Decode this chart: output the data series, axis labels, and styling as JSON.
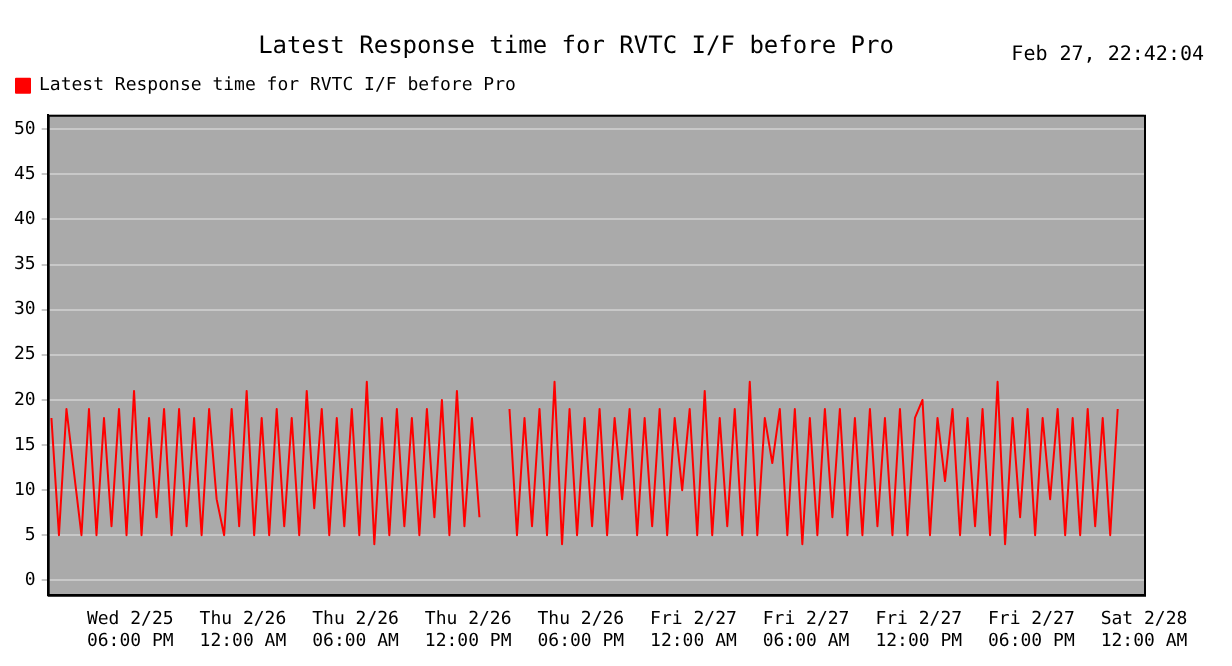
{
  "chart_data": {
    "type": "line",
    "title": "Latest Response time for RVTC I/F before Pro",
    "annotations": [
      "Feb 27, 22:42:04"
    ],
    "x": [
      "--02-25T13:48",
      "--02-25T14:12",
      "--02-25T14:36",
      "--02-25T15:00",
      "--02-25T15:24",
      "--02-25T15:48",
      "--02-25T16:12",
      "--02-25T16:36",
      "--02-25T17:00",
      "--02-25T17:24",
      "--02-25T17:48",
      "--02-25T18:12",
      "--02-25T18:36",
      "--02-25T19:00",
      "--02-25T19:24",
      "--02-25T19:48",
      "--02-25T20:12",
      "--02-25T20:36",
      "--02-25T21:00",
      "--02-25T21:24",
      "--02-25T21:48",
      "--02-25T22:12",
      "--02-25T22:36",
      "--02-25T23:00",
      "--02-25T23:24",
      "--02-25T23:48",
      "--02-26T00:12",
      "--02-26T00:36",
      "--02-26T01:00",
      "--02-26T01:24",
      "--02-26T01:48",
      "--02-26T02:12",
      "--02-26T02:36",
      "--02-26T03:00",
      "--02-26T03:24",
      "--02-26T03:48",
      "--02-26T04:12",
      "--02-26T04:36",
      "--02-26T05:00",
      "--02-26T05:24",
      "--02-26T05:48",
      "--02-26T06:12",
      "--02-26T06:36",
      "--02-26T07:00",
      "--02-26T07:24",
      "--02-26T07:48",
      "--02-26T08:12",
      "--02-26T08:36",
      "--02-26T09:00",
      "--02-26T09:24",
      "--02-26T09:48",
      "--02-26T10:12",
      "--02-26T10:36",
      "--02-26T11:00",
      "--02-26T11:24",
      "--02-26T11:48",
      "--02-26T12:12",
      "--02-26T12:36",
      "--02-26T13:00",
      "--02-26T13:24",
      "--02-26T13:48",
      "--02-26T14:12",
      "--02-26T14:36",
      "--02-26T15:00",
      "--02-26T15:24",
      "--02-26T15:48",
      "--02-26T16:12",
      "--02-26T16:36",
      "--02-26T17:00",
      "--02-26T17:24",
      "--02-26T17:48",
      "--02-26T18:12",
      "--02-26T18:36",
      "--02-26T19:00",
      "--02-26T19:24",
      "--02-26T19:48",
      "--02-26T20:12",
      "--02-26T20:36",
      "--02-26T21:00",
      "--02-26T21:24",
      "--02-26T21:48",
      "--02-26T22:12",
      "--02-26T22:36",
      "--02-26T23:00",
      "--02-26T23:24",
      "--02-26T23:48",
      "--02-27T00:12",
      "--02-27T00:36",
      "--02-27T01:00",
      "--02-27T01:24",
      "--02-27T01:48",
      "--02-27T02:12",
      "--02-27T02:36",
      "--02-27T03:00",
      "--02-27T03:24",
      "--02-27T03:48",
      "--02-27T04:12",
      "--02-27T04:36",
      "--02-27T05:00",
      "--02-27T05:24",
      "--02-27T05:48",
      "--02-27T06:12",
      "--02-27T06:36",
      "--02-27T07:00",
      "--02-27T07:24",
      "--02-27T07:48",
      "--02-27T08:12",
      "--02-27T08:36",
      "--02-27T09:00",
      "--02-27T09:24",
      "--02-27T09:48",
      "--02-27T10:12",
      "--02-27T10:36",
      "--02-27T11:00",
      "--02-27T11:24",
      "--02-27T11:48",
      "--02-27T12:12",
      "--02-27T12:36",
      "--02-27T13:00",
      "--02-27T13:24",
      "--02-27T13:48",
      "--02-27T14:12",
      "--02-27T14:36",
      "--02-27T15:00",
      "--02-27T15:24",
      "--02-27T15:48",
      "--02-27T16:12",
      "--02-27T16:36",
      "--02-27T17:00",
      "--02-27T17:24",
      "--02-27T17:48",
      "--02-27T18:12",
      "--02-27T18:36",
      "--02-27T19:00",
      "--02-27T19:24",
      "--02-27T19:48",
      "--02-27T20:12",
      "--02-27T20:36",
      "--02-27T21:00",
      "--02-27T21:24",
      "--02-27T21:48",
      "--02-27T22:12",
      "--02-27T22:36"
    ],
    "series": [
      {
        "name": "Latest Response time for RVTC I/F before Pro",
        "color": "#ff0000",
        "values": [
          18,
          5,
          19,
          12,
          5,
          19,
          5,
          18,
          6,
          19,
          5,
          21,
          5,
          18,
          7,
          19,
          5,
          19,
          6,
          18,
          5,
          19,
          9,
          5,
          19,
          6,
          21,
          5,
          18,
          5,
          19,
          6,
          18,
          5,
          21,
          8,
          19,
          5,
          18,
          6,
          19,
          5,
          22,
          4,
          18,
          5,
          19,
          6,
          18,
          5,
          19,
          7,
          20,
          5,
          21,
          6,
          18,
          7,
          null,
          null,
          null,
          19,
          5,
          18,
          6,
          19,
          5,
          22,
          4,
          19,
          5,
          18,
          6,
          19,
          5,
          18,
          9,
          19,
          5,
          18,
          6,
          19,
          5,
          18,
          10,
          19,
          5,
          21,
          5,
          18,
          6,
          19,
          5,
          22,
          5,
          18,
          13,
          19,
          5,
          19,
          4,
          18,
          5,
          19,
          7,
          19,
          5,
          18,
          5,
          19,
          6,
          18,
          5,
          19,
          5,
          18,
          20,
          5,
          18,
          11,
          19,
          5,
          18,
          6,
          19,
          5,
          22,
          4,
          18,
          7,
          19,
          5,
          18,
          9,
          19,
          5,
          18,
          5,
          19,
          6,
          18,
          5,
          19
        ]
      }
    ],
    "xlim": [
      "--02-25T13:36",
      "--02-28T00:00"
    ],
    "xticks": [
      {
        "value": "--02-25T18:00",
        "label": "Wed 2/25 06:00 PM"
      },
      {
        "value": "--02-26T00:00",
        "label": "Thu 2/26 12:00 AM"
      },
      {
        "value": "--02-26T06:00",
        "label": "Thu 2/26 06:00 AM"
      },
      {
        "value": "--02-26T12:00",
        "label": "Thu 2/26 12:00 PM"
      },
      {
        "value": "--02-26T18:00",
        "label": "Thu 2/26 06:00 PM"
      },
      {
        "value": "--02-27T00:00",
        "label": "Fri 2/27 12:00 AM"
      },
      {
        "value": "--02-27T06:00",
        "label": "Fri 2/27 06:00 AM"
      },
      {
        "value": "--02-27T12:00",
        "label": "Fri 2/27 12:00 PM"
      },
      {
        "value": "--02-27T18:00",
        "label": "Fri 2/27 06:00 PM"
      },
      {
        "value": "--02-28T00:00",
        "label": "Sat 2/28 12:00 AM"
      }
    ],
    "ylim": [
      -1.6,
      51.6
    ],
    "yticks": [
      0,
      5,
      10,
      15,
      20,
      25,
      30,
      35,
      40,
      45,
      50
    ],
    "grid": "y",
    "legend": "top left",
    "marker": "none",
    "line_style": "solid"
  }
}
